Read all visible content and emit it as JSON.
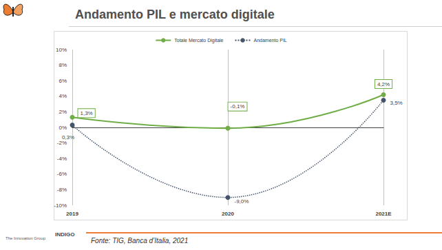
{
  "chart_data": {
    "type": "line",
    "title": "Andamento PIL e mercato digitale",
    "categories": [
      "2019",
      "2020",
      "2021E"
    ],
    "series": [
      {
        "name": "Totale Mercato Digitale",
        "color": "#70ad47",
        "marker": "circle",
        "line_style": "solid",
        "values": [
          1.3,
          -0.1,
          4.2
        ],
        "value_labels": [
          "1,3%",
          "-0,1%",
          "4,2%"
        ]
      },
      {
        "name": "Andamento PIL",
        "color": "#44546a",
        "marker": "circle",
        "line_style": "dotted",
        "values": [
          0.3,
          -9.0,
          3.5
        ],
        "value_labels": [
          "0,3%",
          "-9,0%",
          "3,5%"
        ]
      }
    ],
    "ylim": [
      -10,
      10
    ],
    "yticks": [
      {
        "value": -10,
        "label": "-10%"
      },
      {
        "value": -8,
        "label": "-8%"
      },
      {
        "value": -6,
        "label": "-6%"
      },
      {
        "value": -4,
        "label": "-4%"
      },
      {
        "value": -2,
        "label": "-2%"
      },
      {
        "value": 0,
        "label": "0%"
      },
      {
        "value": 2,
        "label": "2%"
      },
      {
        "value": 4,
        "label": "4%"
      },
      {
        "value": 6,
        "label": "6%"
      },
      {
        "value": 8,
        "label": "8%"
      },
      {
        "value": 10,
        "label": "10%"
      }
    ],
    "grid": "x",
    "legend": "top",
    "data_labels": true
  },
  "footer": {
    "source_label": "Fonte:",
    "source": "TIG, Banca d’Italia, 2021"
  },
  "logos": [
    "The Innovation Group",
    "INDIGO"
  ]
}
